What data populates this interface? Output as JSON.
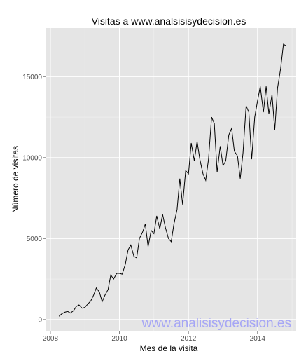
{
  "chart_data": {
    "type": "line",
    "title": "Visitas a www.analsisisydecision.es",
    "xlabel": "Mes de la visita",
    "ylabel": "Número de visitas",
    "xlim": [
      2007.88,
      2015.12
    ],
    "ylim": [
      -700,
      18000
    ],
    "x_ticks": [
      2008,
      2010,
      2012,
      2014
    ],
    "y_ticks": [
      0,
      5000,
      10000,
      15000
    ],
    "grid": true,
    "background": "#e5e5e5",
    "line_color": "#000000",
    "watermark": "www.analisisydecision.es",
    "series": [
      {
        "x": [
          2008.25,
          2008.33,
          2008.42,
          2008.5,
          2008.58,
          2008.67,
          2008.75,
          2008.83,
          2008.92,
          2009.0,
          2009.08,
          2009.17,
          2009.25,
          2009.33,
          2009.42,
          2009.5,
          2009.58,
          2009.67,
          2009.75,
          2009.83,
          2009.92,
          2010.0,
          2010.08,
          2010.17,
          2010.25,
          2010.33,
          2010.42,
          2010.5,
          2010.58,
          2010.67,
          2010.75,
          2010.83,
          2010.92,
          2011.0,
          2011.08,
          2011.17,
          2011.25,
          2011.33,
          2011.42,
          2011.5,
          2011.58,
          2011.67,
          2011.75,
          2011.83,
          2011.92,
          2012.0,
          2012.08,
          2012.17,
          2012.25,
          2012.33,
          2012.42,
          2012.5,
          2012.58,
          2012.67,
          2012.75,
          2012.83,
          2012.92,
          2013.0,
          2013.08,
          2013.17,
          2013.25,
          2013.33,
          2013.42,
          2013.5,
          2013.58,
          2013.67,
          2013.75,
          2013.83,
          2013.92,
          2014.0,
          2014.08,
          2014.17,
          2014.25,
          2014.33,
          2014.42,
          2014.5,
          2014.58,
          2014.67,
          2014.75,
          2014.83
        ],
        "y": [
          200,
          350,
          450,
          500,
          400,
          550,
          800,
          900,
          700,
          750,
          950,
          1150,
          1500,
          1950,
          1700,
          1100,
          1500,
          1850,
          2750,
          2500,
          2850,
          2850,
          2800,
          3400,
          4300,
          4600,
          3900,
          3800,
          5000,
          5400,
          5900,
          4500,
          5500,
          5300,
          6400,
          5600,
          6500,
          5700,
          5000,
          4800,
          5900,
          6800,
          8700,
          7100,
          9200,
          9000,
          10900,
          9800,
          11000,
          9900,
          9000,
          8600,
          9900,
          12500,
          12100,
          9100,
          10700,
          9500,
          9800,
          11400,
          11800,
          10400,
          10100,
          8700,
          10300,
          13200,
          12800,
          9900,
          12500,
          13500,
          14400,
          12800,
          14400,
          12700,
          13900,
          11700,
          14300,
          15500,
          17000,
          16900
        ]
      }
    ]
  }
}
